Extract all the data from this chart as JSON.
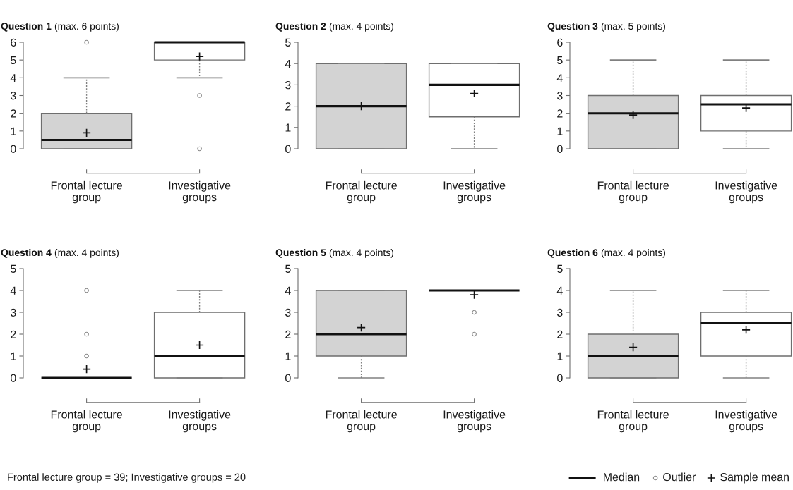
{
  "chart_data": [
    {
      "type": "box",
      "title": "Question 1",
      "subtitle": "(max. 6 points)",
      "categories": [
        "Frontal lecture\ngroup",
        "Investigative\ngroups"
      ],
      "colors": [
        "#d3d3d3",
        "#ffffff"
      ],
      "boxes": [
        {
          "low": 0,
          "q1": 0,
          "median": 0.5,
          "q3": 2,
          "high": 4,
          "mean": 0.9,
          "outliers": [
            6
          ]
        },
        {
          "low": 4,
          "q1": 5,
          "median": 6,
          "q3": 6,
          "high": 6,
          "mean": 5.2,
          "outliers": [
            3,
            0
          ]
        }
      ],
      "ylim": [
        0,
        6
      ],
      "yticks": [
        0,
        1,
        2,
        3,
        4,
        5,
        6
      ]
    },
    {
      "type": "box",
      "title": "Question 2",
      "subtitle": "(max. 4 points)",
      "categories": [
        "Frontal lecture\ngroup",
        "Investigative\ngroups"
      ],
      "colors": [
        "#d3d3d3",
        "#ffffff"
      ],
      "boxes": [
        {
          "low": 0,
          "q1": 0,
          "median": 2,
          "q3": 4,
          "high": 4,
          "mean": 2.0
        },
        {
          "low": 0,
          "q1": 1.5,
          "median": 3,
          "q3": 4,
          "high": 4,
          "mean": 2.6
        }
      ],
      "ylim": [
        0,
        5
      ],
      "yticks": [
        0,
        1,
        2,
        3,
        4,
        5
      ]
    },
    {
      "type": "box",
      "title": "Question 3",
      "subtitle": "(max. 5 points)",
      "categories": [
        "Frontal lecture\ngroup",
        "Investigative\ngroups"
      ],
      "colors": [
        "#d3d3d3",
        "#ffffff"
      ],
      "boxes": [
        {
          "low": 0,
          "q1": 0,
          "median": 2,
          "q3": 3,
          "high": 5,
          "mean": 1.9
        },
        {
          "low": 0,
          "q1": 1,
          "median": 2.5,
          "q3": 3,
          "high": 5,
          "mean": 2.3
        }
      ],
      "ylim": [
        0,
        6
      ],
      "yticks": [
        0,
        1,
        2,
        3,
        4,
        5,
        6
      ]
    },
    {
      "type": "box",
      "title": "Question 4",
      "subtitle": "(max. 4 points)",
      "categories": [
        "Frontal lecture\ngroup",
        "Investigative\ngroups"
      ],
      "colors": [
        "#d3d3d3",
        "#ffffff"
      ],
      "boxes": [
        {
          "low": 0,
          "q1": 0,
          "median": 0,
          "q3": 0,
          "high": 0,
          "mean": 0.4,
          "outliers": [
            1,
            2,
            4
          ]
        },
        {
          "low": 0,
          "q1": 0,
          "median": 1,
          "q3": 3,
          "high": 4,
          "mean": 1.5
        }
      ],
      "ylim": [
        0,
        5
      ],
      "yticks": [
        0,
        1,
        2,
        3,
        4,
        5
      ],
      "annotations": [
        "Frontal lecture group = 39; Investigative groups = 20"
      ]
    },
    {
      "type": "box",
      "title": "Question 5",
      "subtitle": "(max. 4 points)",
      "categories": [
        "Frontal lecture\ngroup",
        "Investigative\ngroups"
      ],
      "colors": [
        "#d3d3d3",
        "#ffffff"
      ],
      "boxes": [
        {
          "low": 0,
          "q1": 1,
          "median": 2,
          "q3": 4,
          "high": 4,
          "mean": 2.3
        },
        {
          "low": 4,
          "q1": 4,
          "median": 4,
          "q3": 4,
          "high": 4,
          "mean": 3.8,
          "outliers": [
            3,
            2
          ]
        }
      ],
      "ylim": [
        0,
        5
      ],
      "yticks": [
        0,
        1,
        2,
        3,
        4,
        5
      ]
    },
    {
      "type": "box",
      "title": "Question 6",
      "subtitle": "(max. 4 points)",
      "categories": [
        "Frontal lecture\ngroup",
        "Investigative\ngroups"
      ],
      "colors": [
        "#d3d3d3",
        "#ffffff"
      ],
      "boxes": [
        {
          "low": 0,
          "q1": 0,
          "median": 1,
          "q3": 2,
          "high": 4,
          "mean": 1.4
        },
        {
          "low": 0,
          "q1": 1,
          "median": 2.5,
          "q3": 3,
          "high": 4,
          "mean": 2.2
        }
      ],
      "ylim": [
        0,
        5
      ],
      "yticks": [
        0,
        1,
        2,
        3,
        4,
        5
      ],
      "annotations": [
        "Median",
        "Outlier",
        "Sample mean"
      ]
    }
  ]
}
